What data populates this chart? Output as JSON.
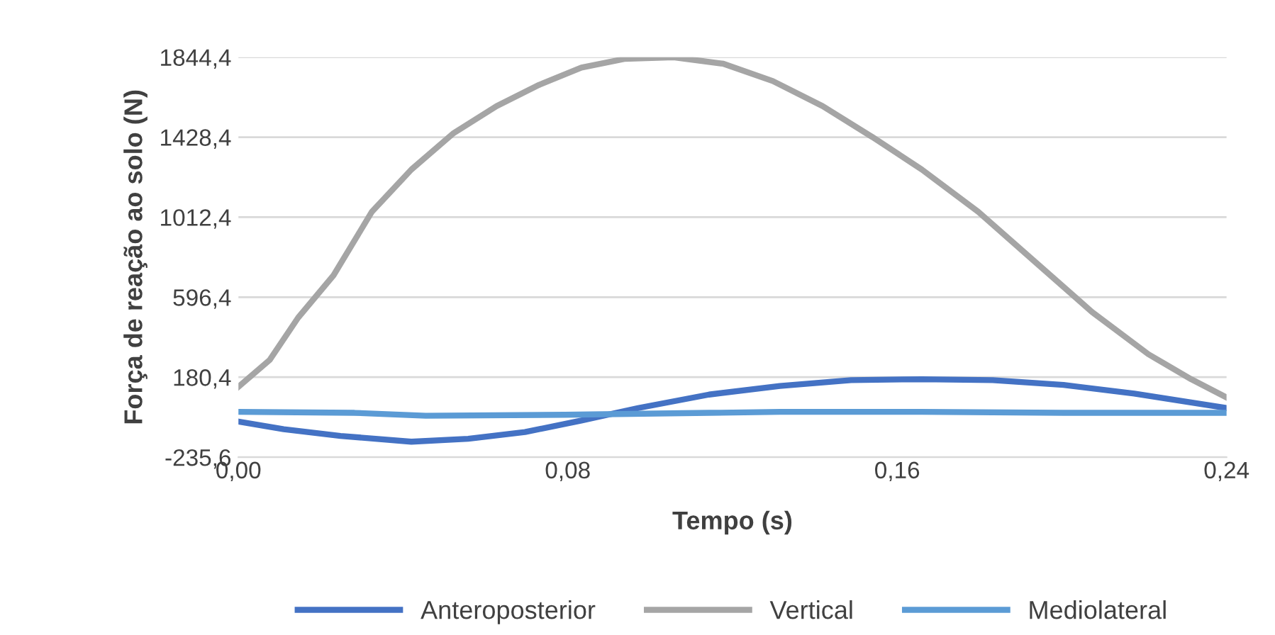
{
  "chart_data": {
    "type": "line",
    "xlabel": "Tempo (s)",
    "ylabel": "Força de reação ao solo (N)",
    "xlim": [
      0,
      0.24
    ],
    "ylim": [
      -235.6,
      1844.4
    ],
    "xticks": [
      {
        "value": 0,
        "label": "0,00"
      },
      {
        "value": 0.08,
        "label": "0,08"
      },
      {
        "value": 0.16,
        "label": "0,16"
      },
      {
        "value": 0.24,
        "label": "0,24"
      }
    ],
    "yticks": [
      {
        "value": -235.6,
        "label": "-235,6"
      },
      {
        "value": 180.4,
        "label": "180,4"
      },
      {
        "value": 596.4,
        "label": "596,4"
      },
      {
        "value": 1012.4,
        "label": "1012,4"
      },
      {
        "value": 1428.4,
        "label": "1428,4"
      },
      {
        "value": 1844.4,
        "label": "1844,4"
      }
    ],
    "grid": "y",
    "legend": "bottom",
    "marker": "none",
    "line_style": "solid",
    "series": [
      {
        "name": "Anteroposterior",
        "color": "#4472c4",
        "x": [
          0,
          0.011,
          0.0248,
          0.042,
          0.0558,
          0.0696,
          0.0833,
          0.0971,
          0.1143,
          0.1315,
          0.1488,
          0.166,
          0.1832,
          0.2004,
          0.2176,
          0.24
        ],
        "values": [
          -50,
          -90,
          -125,
          -155,
          -140,
          -105,
          -45,
          20,
          90,
          135,
          165,
          170,
          165,
          140,
          95,
          20
        ]
      },
      {
        "name": "Vertical",
        "color": "#a5a5a5",
        "x": [
          0,
          0.0076,
          0.0145,
          0.0231,
          0.0324,
          0.042,
          0.0523,
          0.0627,
          0.073,
          0.0833,
          0.0937,
          0.1057,
          0.1178,
          0.1298,
          0.1419,
          0.1539,
          0.166,
          0.1797,
          0.1935,
          0.2073,
          0.221,
          0.2314,
          0.24
        ],
        "values": [
          130,
          270,
          490,
          710,
          1040,
          1260,
          1450,
          1590,
          1700,
          1790,
          1835,
          1844,
          1810,
          1720,
          1590,
          1430,
          1260,
          1040,
          780,
          520,
          300,
          170,
          75
        ]
      },
      {
        "name": "Mediolateral",
        "color": "#5b9bd5",
        "x": [
          0,
          0.0282,
          0.0455,
          0.0792,
          0.1143,
          0.1315,
          0.166,
          0.2004,
          0.24
        ],
        "values": [
          0,
          -5,
          -20,
          -15,
          -5,
          0,
          0,
          -5,
          -5
        ]
      }
    ]
  }
}
